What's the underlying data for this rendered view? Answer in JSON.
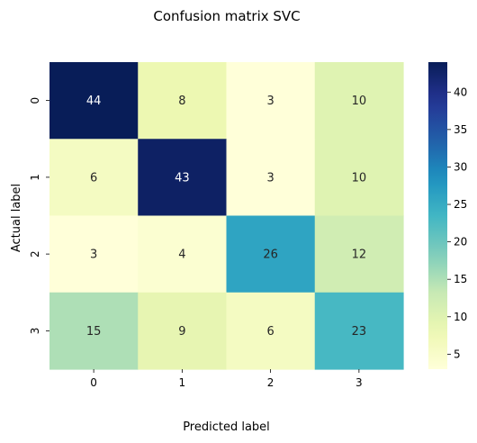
{
  "chart_data": {
    "type": "heatmap",
    "title": "Confusion matrix SVC",
    "xlabel": "Predicted label",
    "ylabel": "Actual label",
    "x_categories": [
      "0",
      "1",
      "2",
      "3"
    ],
    "y_categories": [
      "0",
      "1",
      "2",
      "3"
    ],
    "values": [
      [
        44,
        8,
        3,
        10
      ],
      [
        6,
        43,
        3,
        10
      ],
      [
        3,
        4,
        26,
        12
      ],
      [
        15,
        9,
        6,
        23
      ]
    ],
    "colormap": "YlGnBu",
    "vmin": 3,
    "vmax": 44,
    "colorbar_ticks": [
      5,
      10,
      15,
      20,
      25,
      30,
      35,
      40
    ],
    "annotations": true,
    "grid": false
  }
}
